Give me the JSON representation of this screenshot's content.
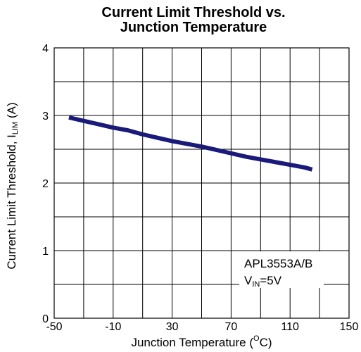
{
  "chart_data": {
    "type": "line",
    "title_line1": "Current Limit Threshold vs.",
    "title_line2": "Junction Temperature",
    "xlabel_main": "Junction Temperature (",
    "xlabel_sup": "O",
    "xlabel_end": "C)",
    "ylabel_main": "Current Limit Threshold, I",
    "ylabel_sub": "LIM",
    "ylabel_end": " (A)",
    "xlim": [
      -50,
      150
    ],
    "ylim": [
      0,
      4
    ],
    "x_ticks": [
      "-50",
      "-10",
      "30",
      "70",
      "110",
      "150"
    ],
    "y_ticks": [
      "0",
      "1",
      "2",
      "3",
      "4"
    ],
    "grid": true,
    "series": [
      {
        "color": "#1a1a7a",
        "x": [
          -40,
          -30,
          -20,
          -10,
          0,
          10,
          20,
          30,
          40,
          50,
          60,
          70,
          80,
          90,
          100,
          110,
          120,
          125
        ],
        "y": [
          2.97,
          2.92,
          2.87,
          2.82,
          2.78,
          2.72,
          2.67,
          2.62,
          2.58,
          2.54,
          2.49,
          2.44,
          2.39,
          2.35,
          2.31,
          2.27,
          2.23,
          2.2
        ]
      }
    ],
    "annotation_line1": "APL3553A/B",
    "annotation_v": "V",
    "annotation_sub": "IN",
    "annotation_rest": "=5V"
  }
}
